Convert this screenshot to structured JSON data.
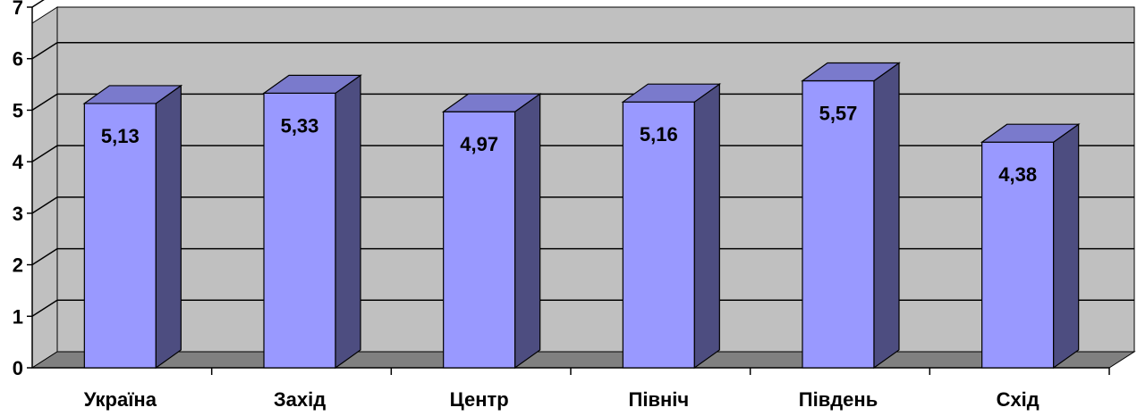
{
  "chart_data": {
    "type": "bar",
    "title": "",
    "xlabel": "",
    "ylabel": "",
    "categories": [
      "Україна",
      "Захід",
      "Центр",
      "Північ",
      "Південь",
      "Схід"
    ],
    "values": [
      5.13,
      5.33,
      4.97,
      5.16,
      5.57,
      4.38
    ],
    "value_labels": [
      "5,13",
      "5,33",
      "4,97",
      "5,16",
      "5,57",
      "4,38"
    ],
    "ylim": [
      0,
      7
    ],
    "y_ticks": [
      "0",
      "1",
      "2",
      "3",
      "4",
      "5",
      "6",
      "7"
    ],
    "grid": true,
    "legend": "none",
    "style": "3d-column",
    "colors": {
      "bar_front": "#9999ff",
      "bar_top": "#7a7acc",
      "bar_side": "#4d4d80",
      "back_wall": "#c0c0c0",
      "floor": "#808080"
    }
  }
}
